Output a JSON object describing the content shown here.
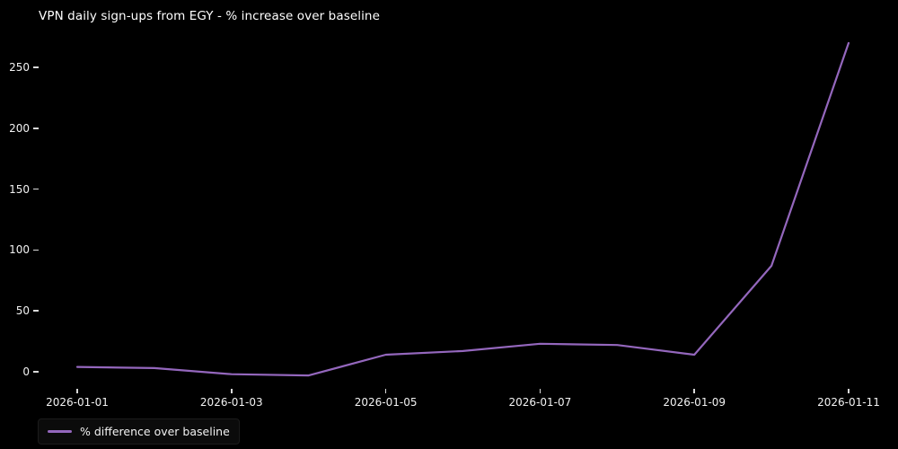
{
  "page": {
    "background": "#000000"
  },
  "chart": {
    "title": "VPN daily sign-ups from EGY - % increase over baseline",
    "legend": {
      "label": "% difference over baseline"
    },
    "colors": {
      "line": "#9467bd",
      "title_text": "#ffffff",
      "tick_text": "#f2f2f2",
      "tick_mark": "#d9d9d9",
      "background": "#000000"
    }
  },
  "chart_data": {
    "type": "line",
    "title": "VPN daily sign-ups from EGY - % increase over baseline",
    "x": [
      "2026-01-01",
      "2026-01-02",
      "2026-01-03",
      "2026-01-04",
      "2026-01-05",
      "2026-01-06",
      "2026-01-07",
      "2026-01-08",
      "2026-01-09",
      "2026-01-10",
      "2026-01-11"
    ],
    "series": [
      {
        "name": "% difference over baseline",
        "values": [
          4,
          3,
          -2,
          -3,
          14,
          17,
          23,
          22,
          14,
          87,
          270
        ]
      }
    ],
    "x_tick_labels": [
      "2026-01-01",
      "2026-01-03",
      "2026-01-05",
      "2026-01-07",
      "2026-01-09",
      "2026-01-11"
    ],
    "y_ticks": [
      0,
      50,
      100,
      150,
      200,
      250
    ],
    "ylim": [
      -17,
      284
    ],
    "xlabel": "",
    "ylabel": "",
    "grid": false,
    "legend_position": "lower-left",
    "line_width": 2
  }
}
